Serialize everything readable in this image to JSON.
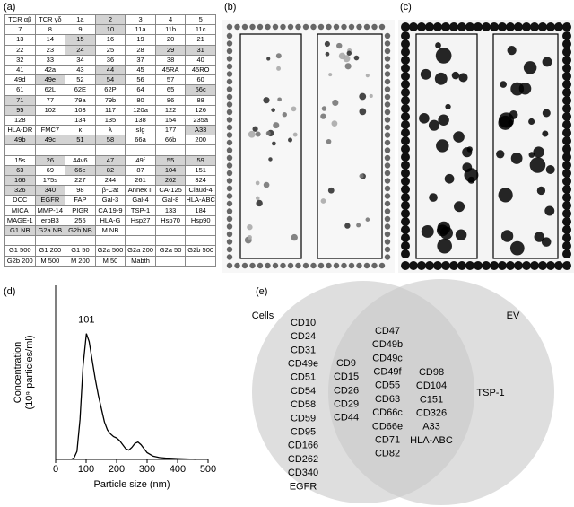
{
  "panel_labels": [
    "(a)",
    "(b)",
    "(c)",
    "(d)",
    "(e)"
  ],
  "table": {
    "rows": [
      [
        "TCR αβ",
        "TCR γδ",
        "1a",
        "2",
        "3",
        "4",
        "5"
      ],
      [
        "7",
        "8",
        "9",
        "10",
        "11a",
        "11b",
        "11c"
      ],
      [
        "13",
        "14",
        "15",
        "16",
        "19",
        "20",
        "21"
      ],
      [
        "22",
        "23",
        "24",
        "25",
        "28",
        "29",
        "31"
      ],
      [
        "32",
        "33",
        "34",
        "36",
        "37",
        "38",
        "40"
      ],
      [
        "41",
        "42a",
        "43",
        "44",
        "45",
        "45RA",
        "45RO"
      ],
      [
        "49d",
        "49e",
        "52",
        "54",
        "56",
        "57",
        "60"
      ],
      [
        "61",
        "62L",
        "62E",
        "62P",
        "64",
        "65",
        "66c"
      ],
      [
        "71",
        "77",
        "79a",
        "79b",
        "80",
        "86",
        "88"
      ],
      [
        "95",
        "102",
        "103",
        "117",
        "120a",
        "122",
        "126"
      ],
      [
        "128",
        null,
        "134",
        "135",
        "138",
        "154",
        "235a"
      ],
      [
        "HLA-DR",
        "FMC7",
        "κ",
        "λ",
        "sIg",
        "177",
        "A33"
      ],
      [
        "49b",
        "49c",
        "51",
        "58",
        "66a",
        "66b",
        "200"
      ],
      [
        null,
        null,
        null,
        null,
        null,
        null,
        null
      ],
      [
        "15s",
        "26",
        "44v6",
        "47",
        "49f",
        "55",
        "59"
      ],
      [
        "63",
        "69",
        "66e",
        "82",
        "87",
        "104",
        "151"
      ],
      [
        "166",
        "175s",
        "227",
        "244",
        "261",
        "262",
        "324"
      ],
      [
        "326",
        "340",
        "98",
        "β-Cat",
        "Annex II",
        "CA-125",
        "Claud-4"
      ],
      [
        "DCC",
        "EGFR",
        "FAP",
        "Gal-3",
        "Gal-4",
        "Gal-8",
        "HLA-ABC"
      ],
      [
        "MICA",
        "MMP-14",
        "PIGR",
        "CA 19-9",
        "TSP-1",
        "133",
        "184"
      ],
      [
        "MAGE-1",
        "erbB3",
        "255",
        "HLA-G",
        "Hsp27",
        "Hsp70",
        "Hsp90"
      ],
      [
        "G1 NB",
        "G2a NB",
        "G2b NB",
        "M NB",
        null,
        null,
        null
      ],
      [
        null,
        null,
        null,
        null,
        null,
        null,
        null
      ],
      [
        "G1 500",
        "G1 200",
        "G1 50",
        "G2a 500",
        "G2a 200",
        "G2a 50",
        "G2b 500"
      ],
      [
        "G2b 200",
        "M 500",
        "M 200",
        "M 50",
        "Mabth",
        null,
        null
      ]
    ]
  },
  "chart_data": {
    "type": "line",
    "xlabel": "Particle size (nm)",
    "ylabel": [
      "Concentration",
      "(10⁹ particles/ml)"
    ],
    "annotation": "101",
    "x": [
      50,
      60,
      70,
      80,
      90,
      101,
      110,
      120,
      130,
      140,
      150,
      160,
      170,
      180,
      190,
      200,
      210,
      220,
      230,
      240,
      250,
      260,
      270,
      280,
      290,
      300,
      320,
      340,
      360,
      380,
      400,
      420,
      440,
      460
    ],
    "values": [
      0,
      0.05,
      0.3,
      1.5,
      3.5,
      4.7,
      4.4,
      3.7,
      3.0,
      2.4,
      1.9,
      1.4,
      1.1,
      0.95,
      0.85,
      0.8,
      0.7,
      0.55,
      0.4,
      0.35,
      0.45,
      0.6,
      0.65,
      0.55,
      0.4,
      0.25,
      0.12,
      0.07,
      0.05,
      0.04,
      0.03,
      0.02,
      0.01,
      0
    ],
    "color": "#000000",
    "xlim": [
      0,
      500
    ],
    "xticks": [
      0,
      100,
      200,
      300,
      400,
      500
    ],
    "ylim": [
      0,
      6.5
    ]
  },
  "venn": {
    "left_label": "Cells",
    "right_label": "EV",
    "left_only": [
      "CD10",
      "CD24",
      "CD31",
      "CD49e",
      "CD51",
      "CD54",
      "CD58",
      "CD59",
      "CD95",
      "CD166",
      "CD262",
      "CD340",
      "EGFR"
    ],
    "both_1": [
      "CD9",
      "CD15",
      "CD26",
      "CD29",
      "CD44"
    ],
    "both_2": [
      "CD47",
      "CD49b",
      "CD49c",
      "CD49f",
      "CD55",
      "CD63",
      "CD66c",
      "CD66e",
      "CD71",
      "CD82"
    ],
    "both_3": [
      "CD98",
      "CD104",
      "C151",
      "CD326",
      "A33",
      "HLA-ABC"
    ],
    "right_only": [
      "TSP-1"
    ]
  }
}
